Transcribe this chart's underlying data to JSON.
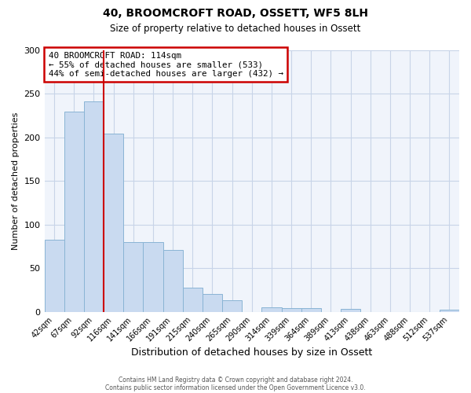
{
  "title": "40, BROOMCROFT ROAD, OSSETT, WF5 8LH",
  "subtitle": "Size of property relative to detached houses in Ossett",
  "xlabel": "Distribution of detached houses by size in Ossett",
  "ylabel": "Number of detached properties",
  "bar_color": "#c9daf0",
  "bar_edge_color": "#8ab4d4",
  "grid_color": "#c8d4e8",
  "background_color": "#f0f4fb",
  "property_line_color": "#cc0000",
  "annotation_box_color": "#cc0000",
  "categories": [
    "42sqm",
    "67sqm",
    "92sqm",
    "116sqm",
    "141sqm",
    "166sqm",
    "191sqm",
    "215sqm",
    "240sqm",
    "265sqm",
    "290sqm",
    "314sqm",
    "339sqm",
    "364sqm",
    "389sqm",
    "413sqm",
    "438sqm",
    "463sqm",
    "488sqm",
    "512sqm",
    "537sqm"
  ],
  "bin_edges": [
    29.5,
    54.5,
    79.5,
    104.5,
    129.5,
    154.5,
    179.5,
    204.5,
    229.5,
    254.5,
    279.5,
    304.5,
    329.5,
    354.5,
    379.5,
    404.5,
    429.5,
    454.5,
    479.5,
    504.5,
    529.5,
    554.5
  ],
  "values": [
    83,
    230,
    241,
    204,
    80,
    80,
    71,
    28,
    20,
    13,
    0,
    5,
    4,
    4,
    0,
    3,
    0,
    0,
    0,
    0,
    2
  ],
  "ylim": [
    0,
    300
  ],
  "yticks": [
    0,
    50,
    100,
    150,
    200,
    250,
    300
  ],
  "property_line_x": 104.5,
  "annotation_line1": "40 BROOMCROFT ROAD: 114sqm",
  "annotation_line2": "← 55% of detached houses are smaller (533)",
  "annotation_line3": "44% of semi-detached houses are larger (432) →",
  "footer_line1": "Contains HM Land Registry data © Crown copyright and database right 2024.",
  "footer_line2": "Contains public sector information licensed under the Open Government Licence v3.0."
}
